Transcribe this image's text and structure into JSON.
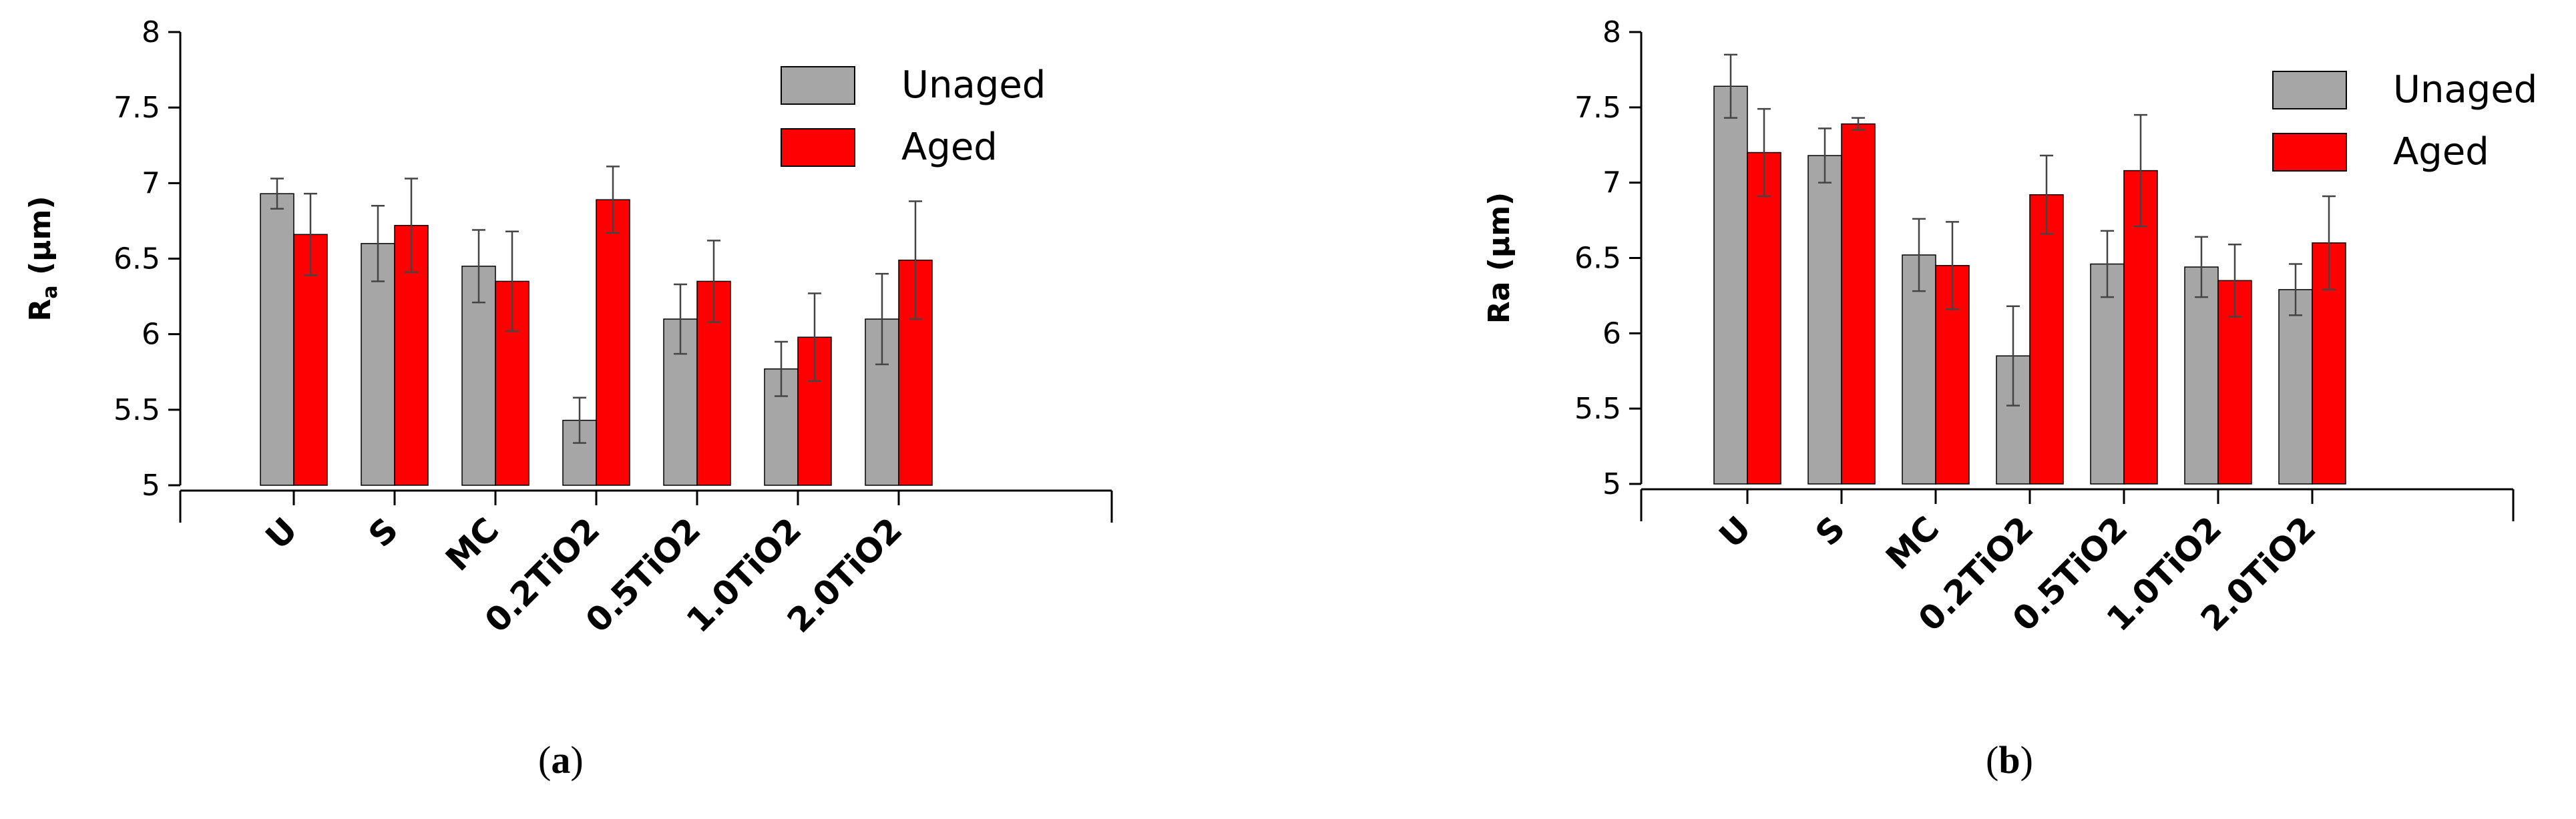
{
  "chart_data": [
    {
      "type": "bar",
      "panel": "a",
      "caption_letter": "a",
      "ylabel_main": "R",
      "ylabel_sub": "a",
      "ylabel_unit": " (µm)",
      "ylim": [
        5,
        8
      ],
      "yticks": [
        "5",
        "5.5",
        "6",
        "6.5",
        "7",
        "7.5",
        "8"
      ],
      "categories": [
        "U",
        "S",
        "MC",
        "0.2TiO2",
        "0.5TiO2",
        "1.0TiO2",
        "2.0TiO2"
      ],
      "legend_position": "top-right",
      "series": [
        {
          "name": "Unaged",
          "color": "#a6a6a6",
          "values": [
            6.93,
            6.6,
            6.45,
            5.43,
            6.1,
            5.77,
            6.1
          ],
          "errors": [
            0.1,
            0.25,
            0.24,
            0.15,
            0.23,
            0.18,
            0.3
          ]
        },
        {
          "name": "Aged",
          "color": "#ff0000",
          "values": [
            6.66,
            6.72,
            6.35,
            6.89,
            6.35,
            5.98,
            6.49
          ],
          "errors": [
            0.27,
            0.31,
            0.33,
            0.22,
            0.27,
            0.29,
            0.39
          ]
        }
      ]
    },
    {
      "type": "bar",
      "panel": "b",
      "caption_letter": "b",
      "ylabel_main": "Ra",
      "ylabel_sub": "",
      "ylabel_unit": " (µm)",
      "ylim": [
        5,
        8
      ],
      "yticks": [
        "5",
        "5.5",
        "6",
        "6.5",
        "7",
        "7.5",
        "8"
      ],
      "categories": [
        "U",
        "S",
        "MC",
        "0.2TiO2",
        "0.5TiO2",
        "1.0TiO2",
        "2.0TiO2"
      ],
      "legend_position": "top-right",
      "series": [
        {
          "name": "Unaged",
          "color": "#a6a6a6",
          "values": [
            7.64,
            7.18,
            6.52,
            5.85,
            6.46,
            6.44,
            6.29
          ],
          "errors": [
            0.21,
            0.18,
            0.24,
            0.33,
            0.22,
            0.2,
            0.17
          ]
        },
        {
          "name": "Aged",
          "color": "#ff0000",
          "values": [
            7.2,
            7.39,
            6.45,
            6.92,
            7.08,
            6.35,
            6.6
          ],
          "errors": [
            0.29,
            0.04,
            0.29,
            0.26,
            0.37,
            0.24,
            0.31
          ]
        }
      ]
    }
  ]
}
